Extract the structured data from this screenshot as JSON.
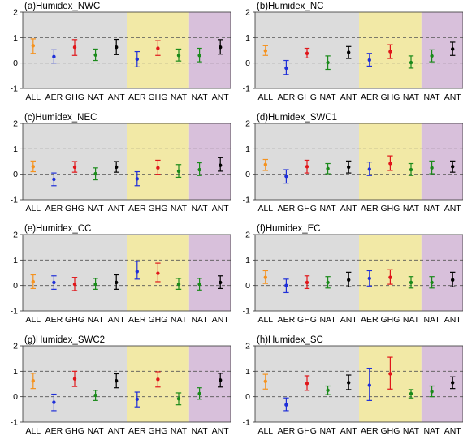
{
  "colors": {
    "grey_band": "#dcdcdc",
    "yellow_band": "#f2e9a6",
    "purple_band": "#d8c0db",
    "ALL": "#f5921e",
    "AER": "#1f2fd8",
    "GHG": "#e0161a",
    "NAT": "#1a8a1a",
    "ANT": "#000000"
  },
  "chart_data": [
    {
      "type": "errorbar",
      "title": "(a)Humidex_NWC",
      "ylim": [
        -1,
        2
      ],
      "yticks": [
        "-1",
        "0",
        "1",
        "2"
      ],
      "categories": [
        "ALL",
        "AER",
        "GHG",
        "NAT",
        "ANT",
        "AER",
        "GHG",
        "NAT",
        "NAT",
        "ANT"
      ],
      "series_keys": [
        "ALL",
        "AER",
        "GHG",
        "NAT",
        "ANT",
        "AER",
        "GHG",
        "NAT",
        "NAT",
        "ANT"
      ],
      "bands": [
        "grey",
        "grey",
        "grey",
        "grey",
        "grey",
        "yellow",
        "yellow",
        "yellow",
        "purple",
        "purple"
      ],
      "values": [
        0.68,
        0.25,
        0.62,
        0.32,
        0.62,
        0.15,
        0.58,
        0.3,
        0.3,
        0.62
      ],
      "lower": [
        0.38,
        0.0,
        0.3,
        0.1,
        0.33,
        -0.15,
        0.3,
        0.08,
        0.05,
        0.35
      ],
      "upper": [
        0.95,
        0.52,
        0.92,
        0.55,
        0.93,
        0.45,
        0.88,
        0.55,
        0.58,
        0.92
      ]
    },
    {
      "type": "errorbar",
      "title": "(b)Humidex_NC",
      "ylim": [
        -1,
        2
      ],
      "yticks": [
        "-1",
        "0",
        "1",
        "2"
      ],
      "categories": [
        "ALL",
        "AER",
        "GHG",
        "NAT",
        "ANT",
        "AER",
        "GHG",
        "NAT",
        "NAT",
        "ANT"
      ],
      "series_keys": [
        "ALL",
        "AER",
        "GHG",
        "NAT",
        "ANT",
        "AER",
        "GHG",
        "NAT",
        "NAT",
        "ANT"
      ],
      "bands": [
        "grey",
        "grey",
        "grey",
        "grey",
        "grey",
        "yellow",
        "yellow",
        "yellow",
        "purple",
        "purple"
      ],
      "values": [
        0.48,
        -0.2,
        0.38,
        0.02,
        0.42,
        0.12,
        0.45,
        0.02,
        0.28,
        0.55
      ],
      "lower": [
        0.3,
        -0.45,
        0.2,
        -0.25,
        0.18,
        -0.12,
        0.18,
        -0.2,
        0.05,
        0.3
      ],
      "upper": [
        0.68,
        0.1,
        0.58,
        0.28,
        0.65,
        0.38,
        0.72,
        0.28,
        0.52,
        0.82
      ]
    },
    {
      "type": "errorbar",
      "title": "(c)Humidex_NEC",
      "ylim": [
        -1,
        2
      ],
      "yticks": [
        "-1",
        "0",
        "1",
        "2"
      ],
      "categories": [
        "ALL",
        "AER",
        "GHG",
        "NAT",
        "ANT",
        "AER",
        "GHG",
        "NAT",
        "NAT",
        "ANT"
      ],
      "series_keys": [
        "ALL",
        "AER",
        "GHG",
        "NAT",
        "ANT",
        "AER",
        "GHG",
        "NAT",
        "NAT",
        "ANT"
      ],
      "bands": [
        "grey",
        "grey",
        "grey",
        "grey",
        "grey",
        "yellow",
        "yellow",
        "yellow",
        "purple",
        "purple"
      ],
      "values": [
        0.3,
        -0.2,
        0.28,
        0.02,
        0.28,
        -0.18,
        0.25,
        0.12,
        0.18,
        0.35
      ],
      "lower": [
        0.1,
        -0.45,
        0.08,
        -0.22,
        0.08,
        -0.45,
        0.0,
        -0.12,
        -0.05,
        0.12
      ],
      "upper": [
        0.52,
        0.05,
        0.5,
        0.25,
        0.5,
        0.1,
        0.55,
        0.38,
        0.45,
        0.65
      ]
    },
    {
      "type": "errorbar",
      "title": "(d)Humidex_SWC1",
      "ylim": [
        -1,
        2
      ],
      "yticks": [
        "-1",
        "0",
        "1",
        "2"
      ],
      "categories": [
        "ALL",
        "AER",
        "GHG",
        "NAT",
        "ANT",
        "AER",
        "GHG",
        "NAT",
        "NAT",
        "ANT"
      ],
      "series_keys": [
        "ALL",
        "AER",
        "GHG",
        "NAT",
        "ANT",
        "AER",
        "GHG",
        "NAT",
        "NAT",
        "ANT"
      ],
      "bands": [
        "grey",
        "grey",
        "grey",
        "grey",
        "grey",
        "yellow",
        "yellow",
        "yellow",
        "purple",
        "purple"
      ],
      "values": [
        0.38,
        -0.08,
        0.3,
        0.22,
        0.28,
        0.2,
        0.42,
        0.18,
        0.25,
        0.3
      ],
      "lower": [
        0.15,
        -0.35,
        0.05,
        0.02,
        0.05,
        -0.05,
        0.15,
        -0.05,
        0.02,
        0.08
      ],
      "upper": [
        0.58,
        0.18,
        0.55,
        0.42,
        0.52,
        0.48,
        0.72,
        0.42,
        0.52,
        0.52
      ]
    },
    {
      "type": "errorbar",
      "title": "(e)Humidex_CC",
      "ylim": [
        -1,
        2
      ],
      "yticks": [
        "-1",
        "0",
        "1",
        "2"
      ],
      "categories": [
        "ALL",
        "AER",
        "GHG",
        "NAT",
        "ANT",
        "AER",
        "GHG",
        "NAT",
        "NAT",
        "ANT"
      ],
      "series_keys": [
        "ALL",
        "AER",
        "GHG",
        "NAT",
        "ANT",
        "AER",
        "GHG",
        "NAT",
        "NAT",
        "ANT"
      ],
      "bands": [
        "grey",
        "grey",
        "grey",
        "grey",
        "grey",
        "yellow",
        "yellow",
        "yellow",
        "purple",
        "purple"
      ],
      "values": [
        0.15,
        0.12,
        0.05,
        0.05,
        0.12,
        0.55,
        0.48,
        0.05,
        0.05,
        0.12
      ],
      "lower": [
        -0.12,
        -0.15,
        -0.2,
        -0.15,
        -0.15,
        0.25,
        0.15,
        -0.15,
        -0.18,
        -0.12
      ],
      "upper": [
        0.42,
        0.38,
        0.32,
        0.28,
        0.42,
        0.95,
        0.88,
        0.28,
        0.28,
        0.38
      ]
    },
    {
      "type": "errorbar",
      "title": "(f)Humidex_EC",
      "ylim": [
        -1,
        2
      ],
      "yticks": [
        "-1",
        "0",
        "1",
        "2"
      ],
      "categories": [
        "ALL",
        "AER",
        "GHG",
        "NAT",
        "ANT",
        "AER",
        "GHG",
        "NAT",
        "NAT",
        "ANT"
      ],
      "series_keys": [
        "ALL",
        "AER",
        "GHG",
        "NAT",
        "ANT",
        "AER",
        "GHG",
        "NAT",
        "NAT",
        "ANT"
      ],
      "bands": [
        "grey",
        "grey",
        "grey",
        "grey",
        "grey",
        "yellow",
        "yellow",
        "yellow",
        "purple",
        "purple"
      ],
      "values": [
        0.32,
        0.0,
        0.12,
        0.12,
        0.22,
        0.28,
        0.32,
        0.12,
        0.12,
        0.22
      ],
      "lower": [
        0.08,
        -0.28,
        -0.12,
        -0.1,
        -0.05,
        -0.02,
        0.05,
        -0.1,
        -0.1,
        -0.05
      ],
      "upper": [
        0.58,
        0.25,
        0.38,
        0.35,
        0.52,
        0.58,
        0.62,
        0.35,
        0.35,
        0.52
      ]
    },
    {
      "type": "errorbar",
      "title": "(g)Humidex_SWC2",
      "ylim": [
        -1,
        2
      ],
      "yticks": [
        "-1",
        "0",
        "1",
        "2"
      ],
      "categories": [
        "ALL",
        "AER",
        "GHG",
        "NAT",
        "ANT",
        "AER",
        "GHG",
        "NAT",
        "NAT",
        "ANT"
      ],
      "series_keys": [
        "ALL",
        "AER",
        "GHG",
        "NAT",
        "ANT",
        "AER",
        "GHG",
        "NAT",
        "NAT",
        "ANT"
      ],
      "bands": [
        "grey",
        "grey",
        "grey",
        "grey",
        "grey",
        "yellow",
        "yellow",
        "yellow",
        "purple",
        "purple"
      ],
      "values": [
        0.62,
        -0.22,
        0.7,
        0.05,
        0.62,
        -0.1,
        0.68,
        -0.08,
        0.12,
        0.65
      ],
      "lower": [
        0.32,
        -0.55,
        0.4,
        -0.15,
        0.35,
        -0.4,
        0.38,
        -0.32,
        -0.1,
        0.38
      ],
      "upper": [
        0.92,
        0.1,
        1.0,
        0.25,
        0.9,
        0.18,
        0.98,
        0.15,
        0.35,
        0.92
      ]
    },
    {
      "type": "errorbar",
      "title": "(h)Humidex_SC",
      "ylim": [
        -1,
        2
      ],
      "yticks": [
        "-1",
        "0",
        "1",
        "2"
      ],
      "categories": [
        "ALL",
        "AER",
        "GHG",
        "NAT",
        "ANT",
        "AER",
        "GHG",
        "NAT",
        "NAT",
        "ANT"
      ],
      "series_keys": [
        "ALL",
        "AER",
        "GHG",
        "NAT",
        "ANT",
        "AER",
        "GHG",
        "NAT",
        "NAT",
        "ANT"
      ],
      "bands": [
        "grey",
        "grey",
        "grey",
        "grey",
        "grey",
        "yellow",
        "yellow",
        "yellow",
        "purple",
        "purple"
      ],
      "values": [
        0.6,
        -0.32,
        0.52,
        0.25,
        0.55,
        0.45,
        0.9,
        0.12,
        0.2,
        0.55
      ],
      "lower": [
        0.3,
        -0.55,
        0.25,
        0.08,
        0.28,
        -0.15,
        0.3,
        -0.05,
        0.0,
        0.32
      ],
      "upper": [
        0.88,
        -0.05,
        0.82,
        0.42,
        0.85,
        1.12,
        1.55,
        0.28,
        0.42,
        0.78
      ]
    }
  ]
}
